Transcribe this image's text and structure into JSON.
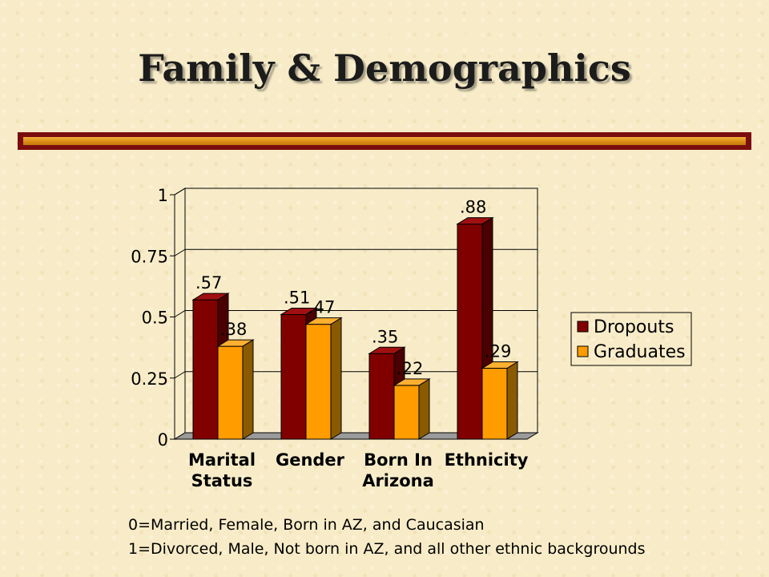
{
  "slide": {
    "title": "Family & Demographics"
  },
  "chart_data": {
    "type": "bar",
    "categories": [
      [
        "Marital",
        "Status"
      ],
      [
        "Gender"
      ],
      [
        "Born In",
        "Arizona"
      ],
      [
        "Ethnicity"
      ]
    ],
    "series": [
      {
        "name": "Dropouts",
        "values": [
          0.57,
          0.51,
          0.35,
          0.88
        ],
        "labels": [
          ".57",
          ".51",
          ".35",
          ".88"
        ],
        "color": "#800000",
        "side": "#4a0000",
        "top": "#a01010"
      },
      {
        "name": "Graduates",
        "values": [
          0.38,
          0.47,
          0.22,
          0.29
        ],
        "labels": [
          ".38",
          ".47",
          ".22",
          ".29"
        ],
        "color": "#ff9c00",
        "side": "#8a5a00",
        "top": "#ffb030"
      }
    ],
    "yticks": [
      "0",
      "0.25",
      "0.5",
      "0.75",
      "1"
    ],
    "ytick_values": [
      0,
      0.25,
      0.5,
      0.75,
      1
    ],
    "ylim": [
      0,
      1
    ],
    "grid": true,
    "legend_position": "right",
    "xlabel": "",
    "ylabel": ""
  },
  "footnote": {
    "line1": "0=Married, Female, Born in AZ, and Caucasian",
    "line2": "1=Divorced, Male, Not born in AZ, and all other ethnic backgrounds"
  }
}
